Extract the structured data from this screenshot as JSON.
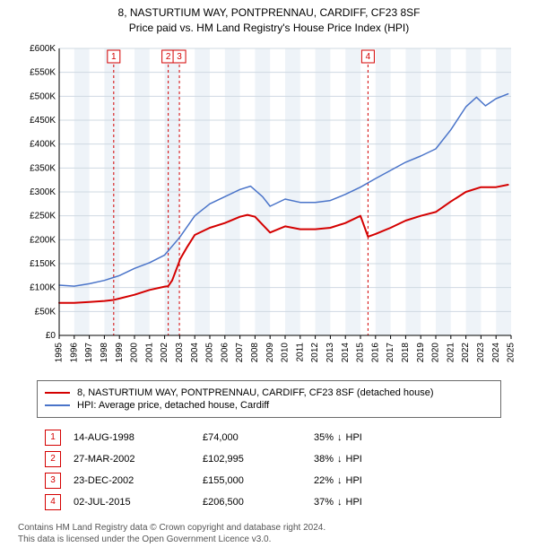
{
  "title_line1": "8, NASTURTIUM WAY, PONTPRENNAU, CARDIFF, CF23 8SF",
  "title_line2": "Price paid vs. HM Land Registry's House Price Index (HPI)",
  "chart": {
    "type": "line",
    "background_color": "#ffffff",
    "plot_bg_color": "#ffffff",
    "grid_band_color": "#eef3f8",
    "gridline_color": "#cfd8e2",
    "x": {
      "min": 1995,
      "max": 2025,
      "ticks": [
        1995,
        1996,
        1997,
        1998,
        1999,
        2000,
        2001,
        2002,
        2003,
        2004,
        2005,
        2006,
        2007,
        2008,
        2009,
        2010,
        2011,
        2012,
        2013,
        2014,
        2015,
        2016,
        2017,
        2018,
        2019,
        2020,
        2021,
        2022,
        2023,
        2024,
        2025
      ]
    },
    "y": {
      "min": 0,
      "max": 600000,
      "ticks": [
        0,
        50000,
        100000,
        150000,
        200000,
        250000,
        300000,
        350000,
        400000,
        450000,
        500000,
        550000,
        600000
      ],
      "tick_labels": [
        "£0",
        "£50K",
        "£100K",
        "£150K",
        "£200K",
        "£250K",
        "£300K",
        "£350K",
        "£400K",
        "£450K",
        "£500K",
        "£550K",
        "£600K"
      ]
    },
    "series": [
      {
        "name": "property",
        "color": "#d40000",
        "width": 2,
        "points": [
          [
            1995.0,
            68000
          ],
          [
            1996.0,
            68000
          ],
          [
            1997.0,
            70000
          ],
          [
            1998.0,
            72000
          ],
          [
            1998.6,
            74000
          ],
          [
            1999.0,
            77000
          ],
          [
            2000.0,
            85000
          ],
          [
            2001.0,
            95000
          ],
          [
            2002.0,
            102000
          ],
          [
            2002.24,
            102995
          ],
          [
            2002.5,
            115000
          ],
          [
            2002.98,
            155000
          ],
          [
            2003.0,
            158000
          ],
          [
            2003.5,
            185000
          ],
          [
            2004.0,
            210000
          ],
          [
            2005.0,
            225000
          ],
          [
            2006.0,
            235000
          ],
          [
            2007.0,
            248000
          ],
          [
            2007.5,
            252000
          ],
          [
            2008.0,
            248000
          ],
          [
            2009.0,
            215000
          ],
          [
            2010.0,
            228000
          ],
          [
            2011.0,
            222000
          ],
          [
            2012.0,
            222000
          ],
          [
            2013.0,
            225000
          ],
          [
            2014.0,
            235000
          ],
          [
            2015.0,
            250000
          ],
          [
            2015.5,
            206500
          ],
          [
            2016.0,
            212000
          ],
          [
            2017.0,
            225000
          ],
          [
            2018.0,
            240000
          ],
          [
            2019.0,
            250000
          ],
          [
            2020.0,
            258000
          ],
          [
            2021.0,
            280000
          ],
          [
            2022.0,
            300000
          ],
          [
            2023.0,
            310000
          ],
          [
            2024.0,
            310000
          ],
          [
            2024.8,
            315000
          ]
        ]
      },
      {
        "name": "hpi",
        "color": "#4a74c9",
        "width": 1.5,
        "points": [
          [
            1995.0,
            105000
          ],
          [
            1996.0,
            103000
          ],
          [
            1997.0,
            108000
          ],
          [
            1998.0,
            115000
          ],
          [
            1999.0,
            125000
          ],
          [
            2000.0,
            140000
          ],
          [
            2001.0,
            152000
          ],
          [
            2002.0,
            168000
          ],
          [
            2003.0,
            205000
          ],
          [
            2004.0,
            250000
          ],
          [
            2005.0,
            275000
          ],
          [
            2006.0,
            290000
          ],
          [
            2007.0,
            305000
          ],
          [
            2007.7,
            312000
          ],
          [
            2008.5,
            290000
          ],
          [
            2009.0,
            270000
          ],
          [
            2010.0,
            285000
          ],
          [
            2011.0,
            278000
          ],
          [
            2012.0,
            278000
          ],
          [
            2013.0,
            282000
          ],
          [
            2014.0,
            295000
          ],
          [
            2015.0,
            310000
          ],
          [
            2016.0,
            328000
          ],
          [
            2017.0,
            345000
          ],
          [
            2018.0,
            362000
          ],
          [
            2019.0,
            375000
          ],
          [
            2020.0,
            390000
          ],
          [
            2021.0,
            430000
          ],
          [
            2022.0,
            478000
          ],
          [
            2022.7,
            498000
          ],
          [
            2023.3,
            480000
          ],
          [
            2024.0,
            495000
          ],
          [
            2024.8,
            505000
          ]
        ]
      }
    ],
    "markers": [
      {
        "n": "1",
        "year": 1998.62
      },
      {
        "n": "2",
        "year": 2002.24
      },
      {
        "n": "3",
        "year": 2002.98
      },
      {
        "n": "4",
        "year": 2015.5
      }
    ],
    "marker_line_color": "#d40000",
    "marker_box_border": "#d40000",
    "marker_text_color": "#d40000",
    "axis_font_size": 10
  },
  "legend": {
    "items": [
      {
        "color": "#d40000",
        "label": "8, NASTURTIUM WAY, PONTPRENNAU, CARDIFF, CF23 8SF (detached house)"
      },
      {
        "color": "#4a74c9",
        "label": "HPI: Average price, detached house, Cardiff"
      }
    ]
  },
  "transactions": [
    {
      "n": "1",
      "date": "14-AUG-1998",
      "price": "£74,000",
      "hpi": "35%",
      "dir": "down"
    },
    {
      "n": "2",
      "date": "27-MAR-2002",
      "price": "£102,995",
      "hpi": "38%",
      "dir": "down"
    },
    {
      "n": "3",
      "date": "23-DEC-2002",
      "price": "£155,000",
      "hpi": "22%",
      "dir": "down"
    },
    {
      "n": "4",
      "date": "02-JUL-2015",
      "price": "£206,500",
      "hpi": "37%",
      "dir": "down"
    }
  ],
  "hpi_suffix": "HPI",
  "footer_line1": "Contains HM Land Registry data © Crown copyright and database right 2024.",
  "footer_line2": "This data is licensed under the Open Government Licence v3.0."
}
